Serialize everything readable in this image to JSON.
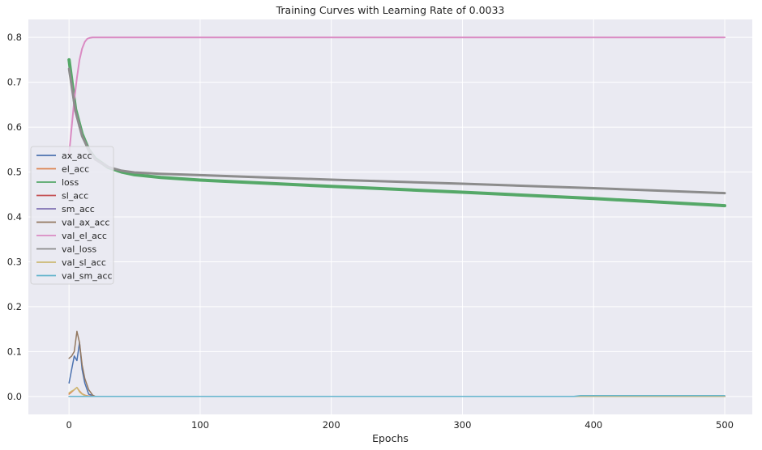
{
  "chart_data": {
    "type": "line",
    "title": "Training Curves with Learning Rate of 0.0033",
    "xlabel": "Epochs",
    "ylabel": "",
    "xlim": [
      -31,
      521
    ],
    "ylim": [
      -0.04,
      0.84
    ],
    "x_ticks": [
      0,
      100,
      200,
      300,
      400,
      500
    ],
    "y_ticks": [
      0.0,
      0.1,
      0.2,
      0.3,
      0.4,
      0.5,
      0.6,
      0.7,
      0.8
    ],
    "grid": true,
    "legend_position": "center-left",
    "series": [
      {
        "name": "ax_acc",
        "color": "#4c72b0",
        "x": [
          0,
          2,
          4,
          6,
          8,
          10,
          12,
          15,
          20,
          40,
          100,
          200,
          300,
          400,
          500
        ],
        "y": [
          0.03,
          0.06,
          0.09,
          0.08,
          0.12,
          0.06,
          0.03,
          0.005,
          0.0,
          0.0,
          0.0,
          0.0,
          0.0,
          0.0,
          0.0
        ]
      },
      {
        "name": "el_acc",
        "color": "#dd8452",
        "x": [
          0,
          2,
          4,
          6,
          8,
          10,
          12,
          15,
          20,
          40,
          100,
          200,
          300,
          400,
          500
        ],
        "y": [
          0.005,
          0.01,
          0.015,
          0.02,
          0.012,
          0.006,
          0.003,
          0.001,
          0.0,
          0.0,
          0.0,
          0.0,
          0.0,
          0.0,
          0.0
        ]
      },
      {
        "name": "loss",
        "color": "#55a868",
        "x": [
          0,
          5,
          10,
          15,
          20,
          30,
          40,
          50,
          70,
          100,
          150,
          200,
          300,
          400,
          500
        ],
        "y": [
          0.75,
          0.64,
          0.585,
          0.55,
          0.53,
          0.51,
          0.5,
          0.494,
          0.488,
          0.482,
          0.475,
          0.468,
          0.455,
          0.441,
          0.425
        ]
      },
      {
        "name": "sl_acc",
        "color": "#c44e52",
        "x": [
          0,
          10,
          20,
          100,
          200,
          300,
          400,
          500
        ],
        "y": [
          0.0,
          0.0,
          0.0,
          0.0,
          0.0,
          0.0,
          0.0,
          0.0
        ]
      },
      {
        "name": "sm_acc",
        "color": "#8172b3",
        "x": [
          0,
          10,
          20,
          100,
          200,
          300,
          400,
          500
        ],
        "y": [
          0.0,
          0.0,
          0.0,
          0.0,
          0.0,
          0.0,
          0.0,
          0.0
        ]
      },
      {
        "name": "val_ax_acc",
        "color": "#937860",
        "x": [
          0,
          2,
          4,
          6,
          8,
          10,
          12,
          15,
          18,
          20,
          40,
          100,
          200,
          300,
          400,
          500
        ],
        "y": [
          0.085,
          0.09,
          0.1,
          0.145,
          0.12,
          0.07,
          0.04,
          0.015,
          0.003,
          0.0,
          0.0,
          0.0,
          0.0,
          0.0,
          0.0,
          0.0
        ]
      },
      {
        "name": "val_el_acc",
        "color": "#da8bc3",
        "x": [
          0,
          2,
          4,
          6,
          8,
          10,
          12,
          14,
          16,
          18,
          20,
          50,
          100,
          200,
          300,
          400,
          500
        ],
        "y": [
          0.54,
          0.6,
          0.66,
          0.71,
          0.75,
          0.775,
          0.79,
          0.797,
          0.799,
          0.8,
          0.8,
          0.8,
          0.8,
          0.8,
          0.8,
          0.8,
          0.8
        ]
      },
      {
        "name": "val_loss",
        "color": "#8c8c8c",
        "x": [
          0,
          5,
          10,
          15,
          20,
          30,
          40,
          50,
          70,
          100,
          150,
          200,
          300,
          400,
          500
        ],
        "y": [
          0.73,
          0.635,
          0.58,
          0.55,
          0.528,
          0.511,
          0.503,
          0.499,
          0.496,
          0.493,
          0.488,
          0.483,
          0.474,
          0.464,
          0.453
        ]
      },
      {
        "name": "val_sl_acc",
        "color": "#ccb974",
        "x": [
          0,
          2,
          4,
          6,
          8,
          10,
          12,
          15,
          20,
          100,
          200,
          300,
          400,
          500
        ],
        "y": [
          0.008,
          0.012,
          0.015,
          0.02,
          0.01,
          0.005,
          0.002,
          0.0,
          0.0,
          0.0,
          0.0,
          0.0,
          0.0,
          0.0
        ]
      },
      {
        "name": "val_sm_acc",
        "color": "#64b5cd",
        "x": [
          0,
          20,
          100,
          200,
          300,
          385,
          390,
          400,
          500
        ],
        "y": [
          0.0,
          0.0,
          0.0,
          0.0,
          0.0,
          0.0,
          0.002,
          0.002,
          0.002
        ]
      }
    ]
  }
}
